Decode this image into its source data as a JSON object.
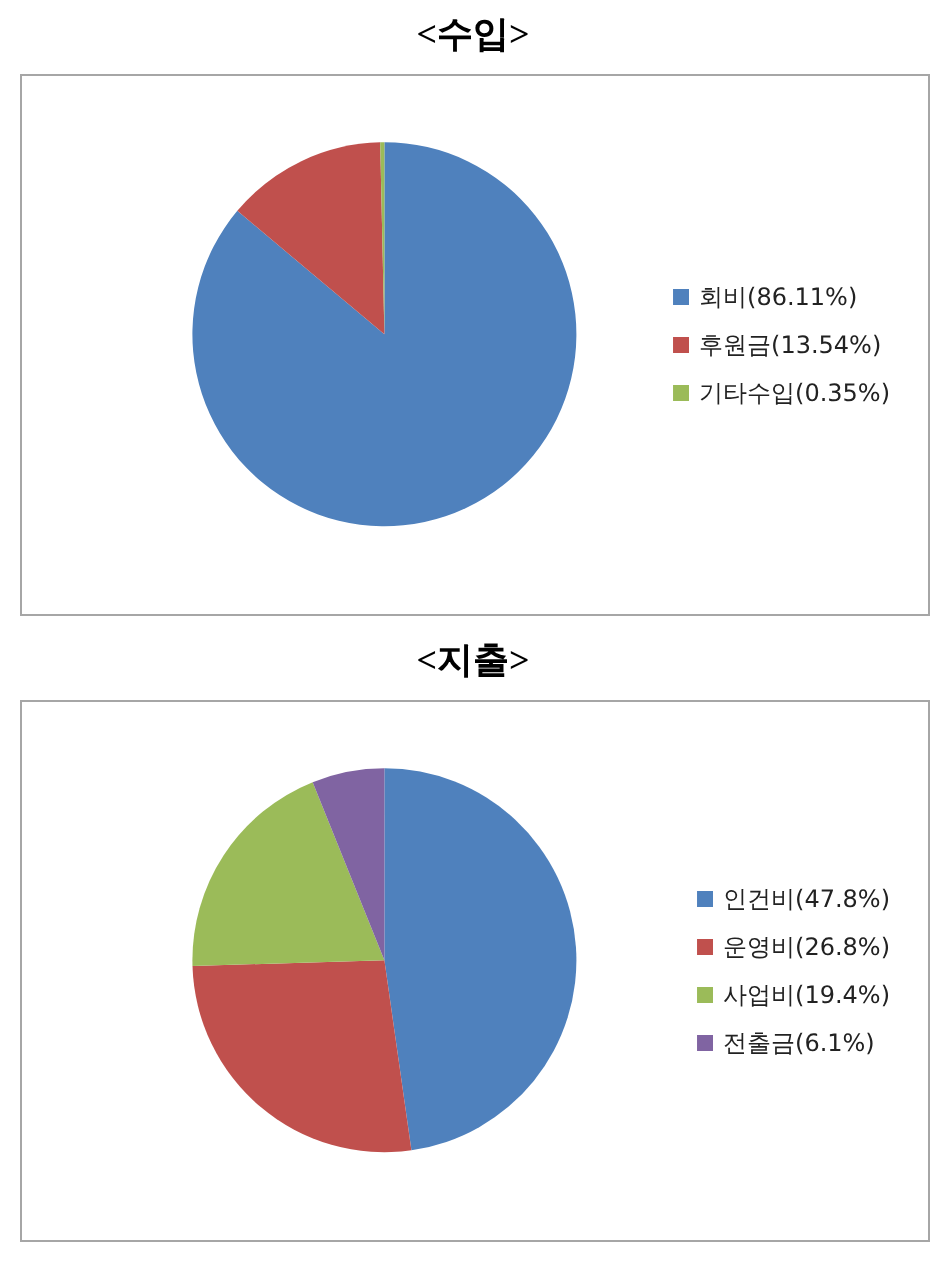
{
  "chart_data": [
    {
      "type": "pie",
      "title": "<수입>",
      "categories": [
        "회비(86.11%)",
        "후원금(13.54%)",
        "기타수입(0.35%)"
      ],
      "values": [
        86.11,
        13.54,
        0.35
      ],
      "colors": [
        "#4f81bd",
        "#c0504d",
        "#9bbb59"
      ],
      "legend": "right"
    },
    {
      "type": "pie",
      "title": "<지출>",
      "categories": [
        "인건비(47.8%)",
        "운영비(26.8%)",
        "사업비(19.4%)",
        "전출금(6.1%)"
      ],
      "values": [
        47.8,
        26.8,
        19.4,
        6.1
      ],
      "colors": [
        "#4f81bd",
        "#c0504d",
        "#9bbb59",
        "#8064a2"
      ],
      "legend": "right"
    }
  ]
}
